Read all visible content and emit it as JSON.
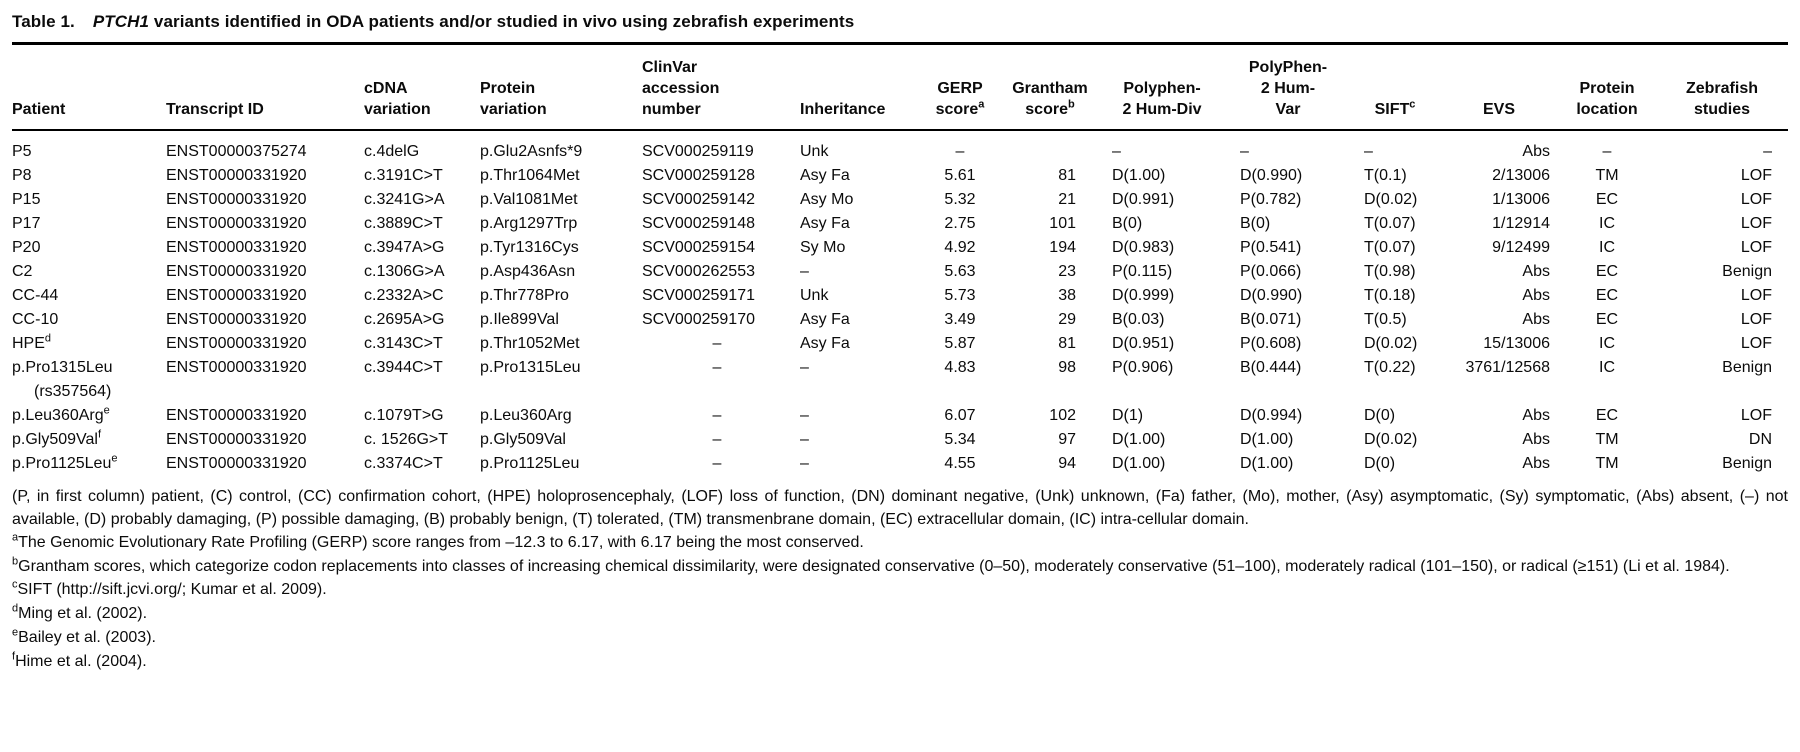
{
  "title": {
    "label": "Table 1.",
    "gene": "PTCH1",
    "rest": " variants identified in ODA patients and/or studied in vivo using zebrafish experiments"
  },
  "table": {
    "columns": [
      {
        "id": "patient",
        "label": "Patient",
        "lines": [
          "Patient"
        ],
        "sup": ""
      },
      {
        "id": "transcript",
        "label": "Transcript ID",
        "lines": [
          "Transcript ID"
        ],
        "sup": ""
      },
      {
        "id": "cdna",
        "label": "cDNA variation",
        "lines": [
          "cDNA",
          "variation"
        ],
        "sup": ""
      },
      {
        "id": "protein",
        "label": "Protein variation",
        "lines": [
          "Protein",
          "variation"
        ],
        "sup": ""
      },
      {
        "id": "clinvar",
        "label": "ClinVar accession number",
        "lines": [
          "ClinVar",
          "accession",
          "number"
        ],
        "sup": ""
      },
      {
        "id": "inheritance",
        "label": "Inheritance",
        "lines": [
          "Inheritance"
        ],
        "sup": ""
      },
      {
        "id": "gerp",
        "label": "GERP score",
        "lines": [
          "GERP",
          "score"
        ],
        "sup": "a"
      },
      {
        "id": "grantham",
        "label": "Grantham score",
        "lines": [
          "Grantham",
          "score"
        ],
        "sup": "b"
      },
      {
        "id": "humdiv",
        "label": "Polyphen-2 Hum-Div",
        "lines": [
          "Polyphen-",
          "2 Hum-Div"
        ],
        "sup": ""
      },
      {
        "id": "humvar",
        "label": "PolyPhen-2 Hum-Var",
        "lines": [
          "PolyPhen-",
          "2 Hum-",
          "Var"
        ],
        "sup": ""
      },
      {
        "id": "sift",
        "label": "SIFT",
        "lines": [
          "SIFT"
        ],
        "sup": "c"
      },
      {
        "id": "evs",
        "label": "EVS",
        "lines": [
          "EVS"
        ],
        "sup": ""
      },
      {
        "id": "location",
        "label": "Protein location",
        "lines": [
          "Protein",
          "location"
        ],
        "sup": ""
      },
      {
        "id": "zebrafish",
        "label": "Zebrafish studies",
        "lines": [
          "Zebrafish",
          "studies"
        ],
        "sup": ""
      }
    ],
    "rows": [
      {
        "patient": "P5",
        "psup": "",
        "patient_line2": "",
        "cells": [
          "ENST00000375274",
          "c.4delG",
          "p.Glu2Asnfs*9",
          "SCV000259119",
          "Unk",
          "–",
          "",
          "–",
          "–",
          "–",
          "Abs",
          "–",
          "–"
        ]
      },
      {
        "patient": "P8",
        "psup": "",
        "patient_line2": "",
        "cells": [
          "ENST00000331920",
          "c.3191C>T",
          "p.Thr1064Met",
          "SCV000259128",
          "Asy Fa",
          "5.61",
          "81",
          "D(1.00)",
          "D(0.990)",
          "T(0.1)",
          "2/13006",
          "TM",
          "LOF"
        ]
      },
      {
        "patient": "P15",
        "psup": "",
        "patient_line2": "",
        "cells": [
          "ENST00000331920",
          "c.3241G>A",
          "p.Val1081Met",
          "SCV000259142",
          "Asy Mo",
          "5.32",
          "21",
          "D(0.991)",
          "P(0.782)",
          "D(0.02)",
          "1/13006",
          "EC",
          "LOF"
        ]
      },
      {
        "patient": "P17",
        "psup": "",
        "patient_line2": "",
        "cells": [
          "ENST00000331920",
          "c.3889C>T",
          "p.Arg1297Trp",
          "SCV000259148",
          "Asy Fa",
          "2.75",
          "101",
          "B(0)",
          "B(0)",
          "T(0.07)",
          "1/12914",
          "IC",
          "LOF"
        ]
      },
      {
        "patient": "P20",
        "psup": "",
        "patient_line2": "",
        "cells": [
          "ENST00000331920",
          "c.3947A>G",
          "p.Tyr1316Cys",
          "SCV000259154",
          "Sy Mo",
          "4.92",
          "194",
          "D(0.983)",
          "P(0.541)",
          "T(0.07)",
          "9/12499",
          "IC",
          "LOF"
        ]
      },
      {
        "patient": "C2",
        "psup": "",
        "patient_line2": "",
        "cells": [
          "ENST00000331920",
          "c.1306G>A",
          "p.Asp436Asn",
          "SCV000262553",
          "–",
          "5.63",
          "23",
          "P(0.115)",
          "P(0.066)",
          "T(0.98)",
          "Abs",
          "EC",
          "Benign"
        ]
      },
      {
        "patient": "CC-44",
        "psup": "",
        "patient_line2": "",
        "cells": [
          "ENST00000331920",
          "c.2332A>C",
          "p.Thr778Pro",
          "SCV000259171",
          "Unk",
          "5.73",
          "38",
          "D(0.999)",
          "D(0.990)",
          "T(0.18)",
          "Abs",
          "EC",
          "LOF"
        ]
      },
      {
        "patient": "CC-10",
        "psup": "",
        "patient_line2": "",
        "cells": [
          "ENST00000331920",
          "c.2695A>G",
          "p.Ile899Val",
          "SCV000259170",
          "Asy Fa",
          "3.49",
          "29",
          "B(0.03)",
          "B(0.071)",
          "T(0.5)",
          "Abs",
          "EC",
          "LOF"
        ]
      },
      {
        "patient": "HPE",
        "psup": "d",
        "patient_line2": "",
        "cells": [
          "ENST00000331920",
          "c.3143C>T",
          "p.Thr1052Met",
          "–",
          "Asy Fa",
          "5.87",
          "81",
          "D(0.951)",
          "P(0.608)",
          "D(0.02)",
          "15/13006",
          "IC",
          "LOF"
        ]
      },
      {
        "patient": "p.Pro1315Leu",
        "psup": "",
        "patient_line2": "(rs357564)",
        "cells": [
          "ENST00000331920",
          "c.3944C>T",
          "p.Pro1315Leu",
          "–",
          "–",
          "4.83",
          "98",
          "P(0.906)",
          "B(0.444)",
          "T(0.22)",
          "3761/12568",
          "IC",
          "Benign"
        ]
      },
      {
        "patient": "p.Leu360Arg",
        "psup": "e",
        "patient_line2": "",
        "cells": [
          "ENST00000331920",
          "c.1079T>G",
          "p.Leu360Arg",
          "–",
          "–",
          "6.07",
          "102",
          "D(1)",
          "D(0.994)",
          "D(0)",
          "Abs",
          "EC",
          "LOF"
        ]
      },
      {
        "patient": "p.Gly509Val",
        "psup": "f",
        "patient_line2": "",
        "cells": [
          "ENST00000331920",
          "c. 1526G>T",
          "p.Gly509Val",
          "–",
          "–",
          "5.34",
          "97",
          "D(1.00)",
          "D(1.00)",
          "D(0.02)",
          "Abs",
          "TM",
          "DN"
        ]
      },
      {
        "patient": "p.Pro1125Leu",
        "psup": "e",
        "patient_line2": "",
        "cells": [
          "ENST00000331920",
          "c.3374C>T",
          "p.Pro1125Leu",
          "–",
          "–",
          "4.55",
          "94",
          "D(1.00)",
          "D(1.00)",
          "D(0)",
          "Abs",
          "TM",
          "Benign"
        ]
      }
    ]
  },
  "footnotes": {
    "legend": "(P, in first column) patient, (C) control, (CC) confirmation cohort, (HPE) holoprosencephaly, (LOF) loss of function, (DN) dominant negative, (Unk) unknown, (Fa) father, (Mo), mother, (Asy) asymptomatic, (Sy) symptomatic, (Abs) absent, (–) not available, (D) probably damaging, (P) possible damaging, (B) probably benign, (T) tolerated, (TM) transmenbrane domain, (EC) extracellular domain, (IC) intra-cellular domain.",
    "notes": [
      {
        "sup": "a",
        "text": "The Genomic Evolutionary Rate Profiling (GERP) score ranges from –12.3 to 6.17, with 6.17 being the most conserved."
      },
      {
        "sup": "b",
        "text": "Grantham scores, which categorize codon replacements into classes of increasing chemical dissimilarity, were designated conservative (0–50), moderately conservative (51–100), moderately radical (101–150), or radical (≥151) (Li et al. 1984)."
      },
      {
        "sup": "c",
        "text": "SIFT (http://sift.jcvi.org/; Kumar et al. 2009)."
      },
      {
        "sup": "d",
        "text": "Ming et al. (2002)."
      },
      {
        "sup": "e",
        "text": "Bailey et al. (2003)."
      },
      {
        "sup": "f",
        "text": "Hime et al. (2004)."
      }
    ]
  }
}
